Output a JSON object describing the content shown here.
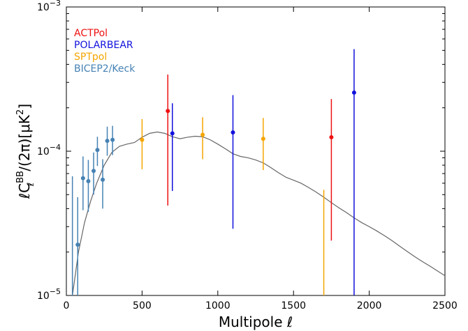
{
  "chart_data": {
    "type": "scatter",
    "xlabel": "Multipole ℓ",
    "ylabel_parts": {
      "pre": "ℓC",
      "sup": "BB",
      "sub": "ℓ",
      "post": "/(2π)[μK",
      "post_sup": "2",
      "close": "]"
    },
    "xlim": [
      0,
      2500
    ],
    "ylim": [
      1e-05,
      0.001
    ],
    "yscale": "log",
    "x_ticks": [
      0,
      500,
      1000,
      1500,
      2000,
      2500
    ],
    "x_tick_labels": [
      "0",
      "500",
      "1000",
      "1500",
      "2000",
      "2500"
    ],
    "y_ticks": [
      1e-05,
      0.0001,
      0.001
    ],
    "y_tick_labels": [
      {
        "base": "10",
        "exp": "−5"
      },
      {
        "base": "10",
        "exp": "−4"
      },
      {
        "base": "10",
        "exp": "−3"
      }
    ],
    "legend_position": "top-left",
    "series": [
      {
        "name": "ACTPol",
        "color": "#ee1111",
        "points": [
          {
            "x": 670,
            "y": 0.00019,
            "ylo": 4.2e-05,
            "yhi": 0.00034
          },
          {
            "x": 1750,
            "y": 0.000125,
            "ylo": 2.4e-05,
            "yhi": 0.00023
          }
        ]
      },
      {
        "name": "POLARBEAR",
        "color": "#1111dd",
        "points": [
          {
            "x": 700,
            "y": 0.000133,
            "ylo": 5.3e-05,
            "yhi": 0.000215
          },
          {
            "x": 1100,
            "y": 0.000135,
            "ylo": 2.9e-05,
            "yhi": 0.000245
          },
          {
            "x": 1900,
            "y": 0.000255,
            "ylo": 1e-05,
            "yhi": 0.00051
          }
        ]
      },
      {
        "name": "SPTpol",
        "color": "#f5a500",
        "points": [
          {
            "x": 500,
            "y": 0.00012,
            "ylo": 7.5e-05,
            "yhi": 0.000167
          },
          {
            "x": 900,
            "y": 0.00013,
            "ylo": 8.8e-05,
            "yhi": 0.000172
          },
          {
            "x": 1300,
            "y": 0.000122,
            "ylo": 7.4e-05,
            "yhi": 0.00017
          },
          {
            "x": 1700,
            "y": null,
            "ylo": 1e-05,
            "yhi": 5.4e-05
          }
        ]
      },
      {
        "name": "BICEP2/Keck",
        "color": "#4682b4",
        "points": [
          {
            "x": 40,
            "y": null,
            "ylo": 1e-05,
            "yhi": 6.7e-05
          },
          {
            "x": 75,
            "y": 2.25e-05,
            "ylo": 1e-05,
            "yhi": 4.8e-05
          },
          {
            "x": 110,
            "y": 6.5e-05,
            "ylo": 3.9e-05,
            "yhi": 9.2e-05
          },
          {
            "x": 145,
            "y": 6.2e-05,
            "ylo": 3.8e-05,
            "yhi": 8.7e-05
          },
          {
            "x": 180,
            "y": 7.3e-05,
            "ylo": 5e-05,
            "yhi": 9.8e-05
          },
          {
            "x": 205,
            "y": 0.000102,
            "ylo": 7.9e-05,
            "yhi": 0.000126
          },
          {
            "x": 240,
            "y": 6.35e-05,
            "ylo": 4e-05,
            "yhi": 8.8e-05
          },
          {
            "x": 270,
            "y": 0.000118,
            "ylo": 9.3e-05,
            "yhi": 0.000148
          },
          {
            "x": 305,
            "y": 0.00012,
            "ylo": 9.4e-05,
            "yhi": 0.00015
          }
        ]
      }
    ],
    "model_curve": {
      "color": "#666666",
      "x": [
        40,
        80,
        120,
        160,
        200,
        250,
        300,
        350,
        400,
        450,
        500,
        550,
        600,
        650,
        700,
        750,
        800,
        850,
        900,
        950,
        1000,
        1050,
        1100,
        1150,
        1200,
        1250,
        1300,
        1350,
        1400,
        1450,
        1500,
        1550,
        1600,
        1650,
        1700,
        1750,
        1800,
        1850,
        1900,
        1950,
        2000,
        2050,
        2100,
        2150,
        2200,
        2250,
        2300,
        2350,
        2400,
        2450,
        2500
      ],
      "y": [
        9.8e-06,
        2e-05,
        3.2e-05,
        4.5e-05,
        6e-05,
        8e-05,
        9.8e-05,
        0.000108,
        0.000112,
        0.000115,
        0.000125,
        0.000133,
        0.000136,
        0.000133,
        0.000126,
        0.000122,
        0.000125,
        0.000127,
        0.000126,
        0.00012,
        0.000112,
        0.000104,
        9.6e-05,
        9.2e-05,
        9e-05,
        8.7e-05,
        8.3e-05,
        7.7e-05,
        7.1e-05,
        6.6e-05,
        6.3e-05,
        6e-05,
        5.6e-05,
        5.2e-05,
        4.8e-05,
        4.4e-05,
        4.05e-05,
        3.75e-05,
        3.45e-05,
        3.2e-05,
        3e-05,
        2.8e-05,
        2.6e-05,
        2.4e-05,
        2.2e-05,
        2.02e-05,
        1.86e-05,
        1.72e-05,
        1.6e-05,
        1.48e-05,
        1.37e-05
      ]
    }
  }
}
